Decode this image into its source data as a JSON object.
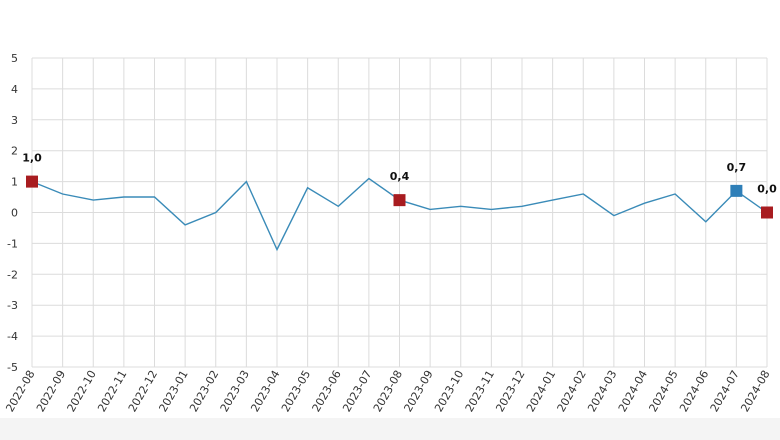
{
  "chart_data": {
    "type": "line",
    "x": [
      "2022-08",
      "2022-09",
      "2022-10",
      "2022-11",
      "2022-12",
      "2023-01",
      "2023-02",
      "2023-03",
      "2023-04",
      "2023-05",
      "2023-06",
      "2023-07",
      "2023-08",
      "2023-09",
      "2023-10",
      "2023-11",
      "2023-12",
      "2024-01",
      "2024-02",
      "2024-03",
      "2024-04",
      "2024-05",
      "2024-06",
      "2024-07",
      "2024-08"
    ],
    "series": [
      {
        "values": [
          1.0,
          0.6,
          0.4,
          0.5,
          0.5,
          -0.4,
          0.0,
          1.0,
          -1.2,
          0.8,
          0.2,
          1.1,
          0.4,
          0.1,
          0.2,
          0.1,
          0.2,
          0.4,
          0.6,
          -0.1,
          0.3,
          0.6,
          -0.3,
          0.7,
          0.0
        ]
      }
    ],
    "ylim": [
      -5,
      5
    ],
    "yticks": [
      5,
      4,
      3,
      2,
      1,
      0,
      -1,
      -2,
      -3,
      -4,
      -5
    ],
    "ytick_labels": [
      "5",
      "4",
      "3",
      "2",
      "1",
      "0",
      "-1",
      "-2",
      "-3",
      "-4",
      "-5"
    ],
    "grid": true,
    "legend": "none",
    "annotations": [
      {
        "index": 0,
        "label": "1,0",
        "marker_color": "#a81c20"
      },
      {
        "index": 12,
        "label": "0,4",
        "marker_color": "#a81c20"
      },
      {
        "index": 23,
        "label": "0,7",
        "marker_color": "#2f7fb8"
      },
      {
        "index": 24,
        "label": "0,0",
        "marker_color": "#a81c20"
      }
    ],
    "line_color": "#3a8bb8"
  }
}
